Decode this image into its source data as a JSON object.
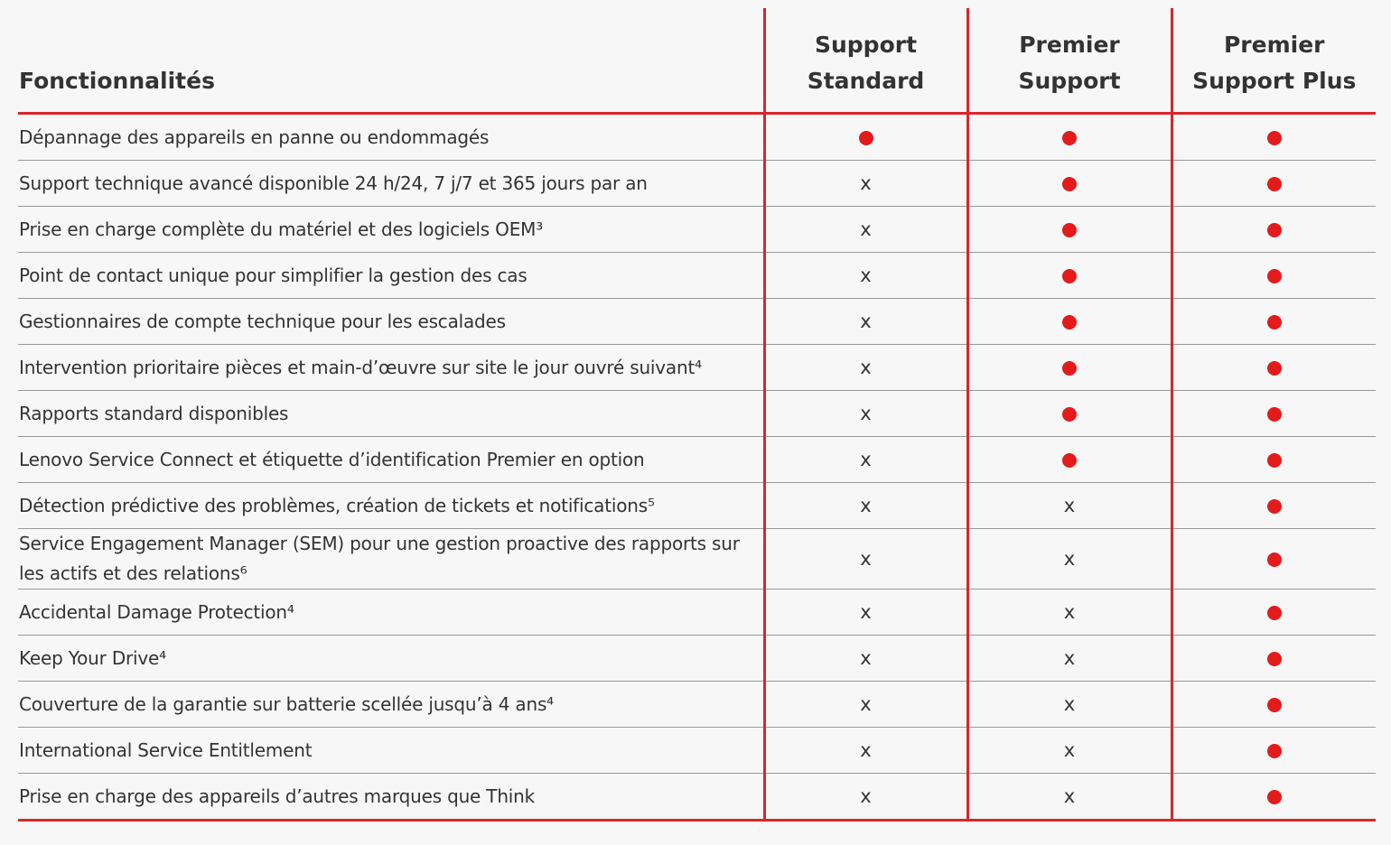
{
  "table": {
    "header": {
      "title": "Fonctionnalités",
      "columns": [
        [
          "Support",
          "Standard"
        ],
        [
          "Premier",
          "Support"
        ],
        [
          "Premier",
          "Support Plus"
        ]
      ]
    },
    "rows": [
      [
        "Dépannage des appareils en panne ou endommagés",
        true,
        true,
        true
      ],
      [
        "Support technique avancé disponible 24 h/24, 7 j/7 et 365 jours par an",
        "x",
        true,
        true
      ],
      [
        "Prise en charge complète du matériel et des logiciels OEM³",
        "x",
        true,
        true
      ],
      [
        "Point de contact unique pour simplifier la gestion des cas",
        "x",
        true,
        true
      ],
      [
        "Gestionnaires de compte technique pour les escalades",
        "x",
        true,
        true
      ],
      [
        "Intervention prioritaire pièces et main-d’œuvre sur site le jour ouvré suivant⁴",
        "x",
        true,
        true
      ],
      [
        "Rapports standard disponibles",
        "x",
        true,
        true
      ],
      [
        "Lenovo Service Connect et étiquette d’identification Premier en option",
        "x",
        true,
        true
      ],
      [
        "Détection prédictive des problèmes, création de tickets et notifications⁵",
        "x",
        "x",
        true
      ],
      [
        "Service Engagement Manager (SEM) pour une gestion proactive des rapports sur les actifs et des relations⁶",
        "x",
        "x",
        true
      ],
      [
        "Accidental Damage Protection⁴",
        "x",
        "x",
        true
      ],
      [
        "Keep Your Drive⁴",
        "x",
        "x",
        true
      ],
      [
        "Couverture de la garantie sur batterie scellée jusqu’à 4 ans⁴",
        "x",
        "x",
        true
      ],
      [
        "International Service Entitlement",
        "x",
        "x",
        true
      ],
      [
        "Prise en charge des appareils d’autres marques que Think",
        "x",
        "x",
        true
      ]
    ]
  }
}
